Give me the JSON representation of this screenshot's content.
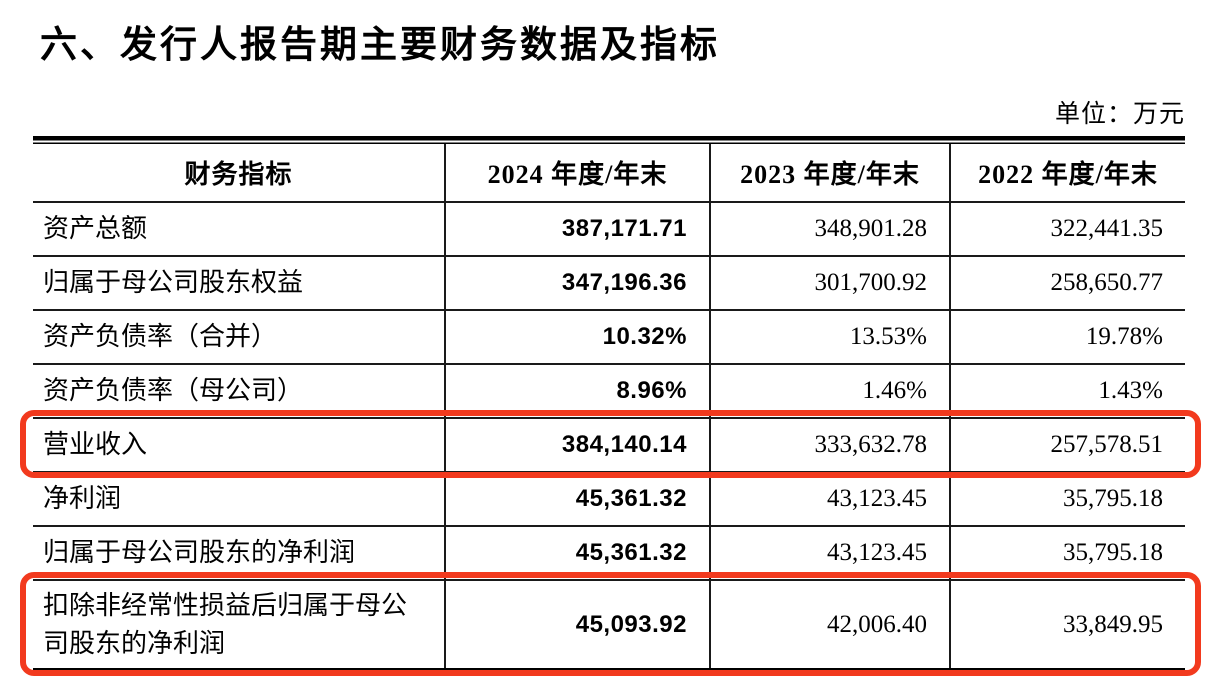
{
  "page": {
    "title": "六、发行人报告期主要财务数据及指标",
    "unit_label": "单位：万元"
  },
  "colors": {
    "highlight_red": "#f23a1e",
    "rule_black": "#000000"
  },
  "table": {
    "headers": [
      "财务指标",
      "2024 年度/年末",
      "2023 年度/年末",
      "2022 年度/年末"
    ],
    "rows": [
      {
        "label": "资产总额",
        "v2024": "387,171.71",
        "v2023": "348,901.28",
        "v2022": "322,441.35",
        "highlighted": false
      },
      {
        "label": "归属于母公司股东权益",
        "v2024": "347,196.36",
        "v2023": "301,700.92",
        "v2022": "258,650.77",
        "highlighted": false
      },
      {
        "label": "资产负债率（合并）",
        "v2024": "10.32%",
        "v2023": "13.53%",
        "v2022": "19.78%",
        "highlighted": false
      },
      {
        "label": "资产负债率（母公司）",
        "v2024": "8.96%",
        "v2023": "1.46%",
        "v2022": "1.43%",
        "highlighted": false
      },
      {
        "label": "营业收入",
        "v2024": "384,140.14",
        "v2023": "333,632.78",
        "v2022": "257,578.51",
        "highlighted": true
      },
      {
        "label": "净利润",
        "v2024": "45,361.32",
        "v2023": "43,123.45",
        "v2022": "35,795.18",
        "highlighted": false
      },
      {
        "label": "归属于母公司股东的净利润",
        "v2024": "45,361.32",
        "v2023": "43,123.45",
        "v2022": "35,795.18",
        "highlighted": false
      },
      {
        "label": "扣除非经常性损益后归属于母公司股东的净利润",
        "v2024": "45,093.92",
        "v2023": "42,006.40",
        "v2022": "33,849.95",
        "highlighted": true
      }
    ]
  }
}
